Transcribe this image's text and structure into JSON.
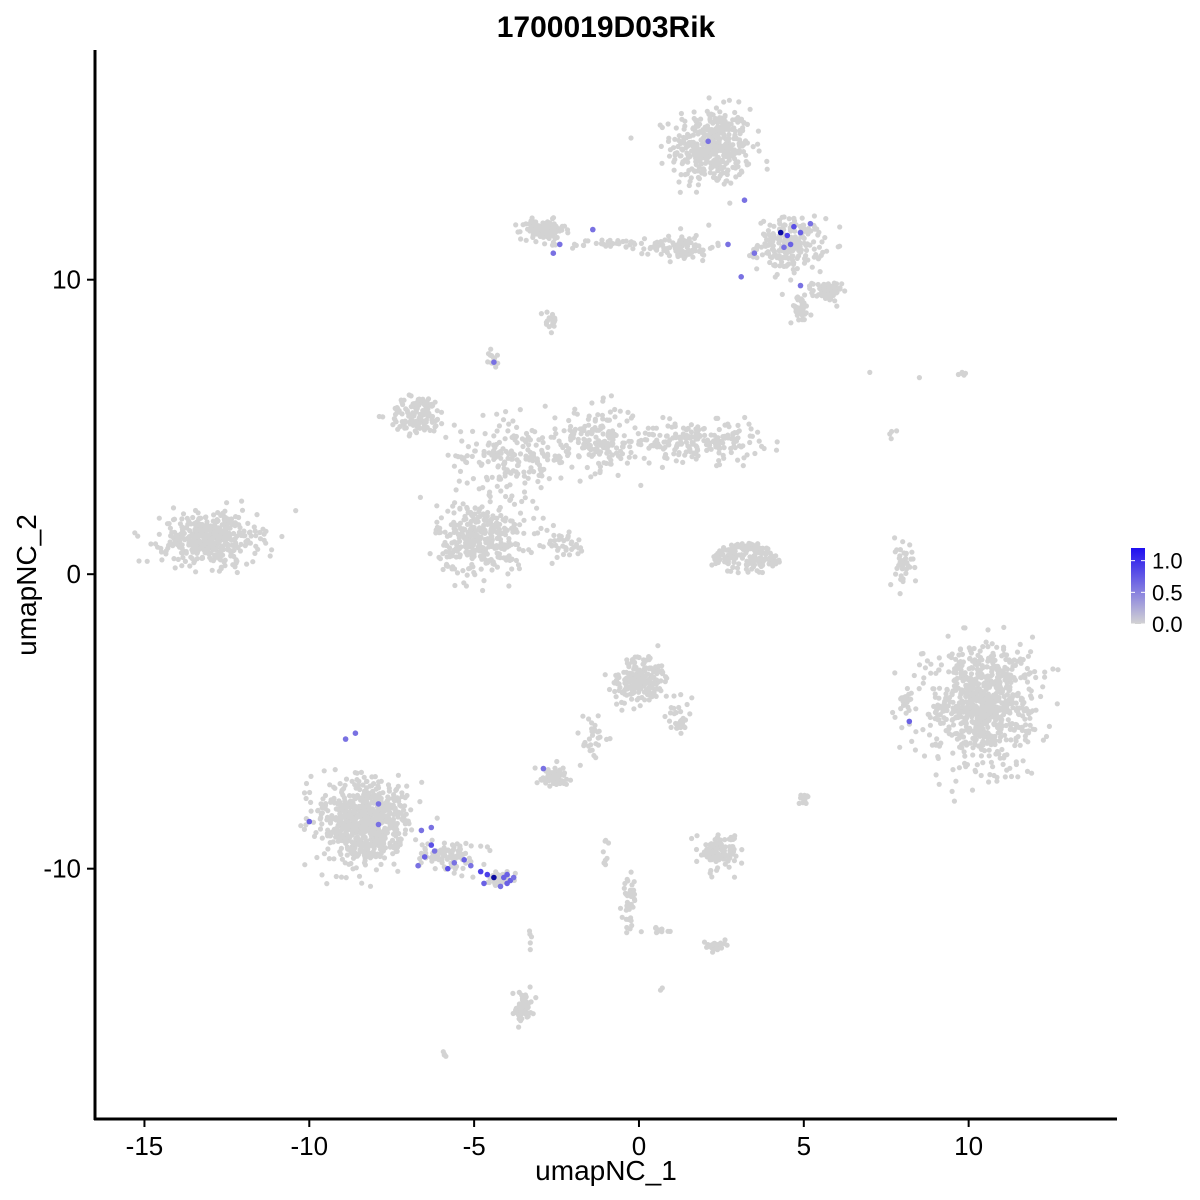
{
  "chart_data": {
    "type": "scatter",
    "title": "1700019D03Rik",
    "xlabel": "umapNC_1",
    "ylabel": "umapNC_2",
    "xlim": [
      -16.5,
      14.5
    ],
    "ylim": [
      -18.5,
      17.8
    ],
    "x_ticks": [
      -15,
      -10,
      -5,
      0,
      5,
      10
    ],
    "x_tick_labels": [
      "-15",
      "-10",
      "-5",
      "0",
      "5",
      "10"
    ],
    "y_ticks": [
      -10,
      0,
      10
    ],
    "y_tick_labels": [
      "-10",
      "0",
      "10"
    ],
    "grid": false,
    "legend_position": "right",
    "color_scale": {
      "low_color": "#d3d3d3",
      "high_color": "#1f0ff0",
      "min": 0.0,
      "max": 1.2,
      "ticks": [
        0.0,
        0.5,
        1.0
      ],
      "tick_labels": [
        "0.0",
        "0.5",
        "1.0"
      ]
    },
    "background_points_color": "#d3d3d3",
    "clusters": [
      {
        "cx": 2.2,
        "cy": 14.5,
        "sx": 1.1,
        "sy": 1.2,
        "n": 420,
        "shape": "ellipse"
      },
      {
        "cx": 4.6,
        "cy": 11.2,
        "sx": 0.9,
        "sy": 0.8,
        "n": 220,
        "shape": "ellipse"
      },
      {
        "cx": 5.7,
        "cy": 9.6,
        "sx": 0.4,
        "sy": 0.3,
        "n": 70,
        "shape": "ellipse"
      },
      {
        "cx": 4.9,
        "cy": 9.0,
        "sx": 0.3,
        "sy": 0.4,
        "n": 40,
        "shape": "ellipse"
      },
      {
        "cx": -2.9,
        "cy": 11.7,
        "sx": 0.6,
        "sy": 0.3,
        "n": 110,
        "shape": "ellipse"
      },
      {
        "cx": 1.3,
        "cy": 11.1,
        "sx": 0.9,
        "sy": 0.4,
        "n": 90,
        "shape": "ellipse"
      },
      {
        "cx": -0.8,
        "cy": 11.2,
        "sx": 1.2,
        "sy": 0.15,
        "n": 40,
        "shape": "ellipse"
      },
      {
        "cx": -2.7,
        "cy": 8.6,
        "sx": 0.2,
        "sy": 0.4,
        "n": 18,
        "shape": "ellipse"
      },
      {
        "cx": -4.4,
        "cy": 7.3,
        "sx": 0.15,
        "sy": 0.3,
        "n": 14,
        "shape": "ellipse"
      },
      {
        "cx": -6.7,
        "cy": 5.4,
        "sx": 0.8,
        "sy": 0.6,
        "n": 130,
        "shape": "ellipse"
      },
      {
        "cx": -3.8,
        "cy": 4.0,
        "sx": 1.6,
        "sy": 1.2,
        "n": 200,
        "shape": "ellipse"
      },
      {
        "cx": -1.2,
        "cy": 4.6,
        "sx": 1.1,
        "sy": 1.0,
        "n": 180,
        "shape": "ellipse"
      },
      {
        "cx": 1.8,
        "cy": 4.5,
        "sx": 1.7,
        "sy": 0.6,
        "n": 200,
        "shape": "ellipse"
      },
      {
        "cx": -4.8,
        "cy": 1.2,
        "sx": 1.2,
        "sy": 1.1,
        "n": 360,
        "shape": "ellipse"
      },
      {
        "cx": -2.4,
        "cy": 1.0,
        "sx": 0.8,
        "sy": 0.5,
        "n": 40,
        "shape": "ellipse"
      },
      {
        "cx": -13.0,
        "cy": 1.2,
        "sx": 1.3,
        "sy": 0.8,
        "n": 430,
        "shape": "ellipse"
      },
      {
        "cx": 3.2,
        "cy": 0.2,
        "sx": 1.1,
        "sy": 0.9,
        "n": 180,
        "shape": "ring"
      },
      {
        "cx": 8.0,
        "cy": 0.3,
        "sx": 0.25,
        "sy": 0.8,
        "n": 40,
        "shape": "ellipse"
      },
      {
        "cx": 10.4,
        "cy": -4.4,
        "sx": 1.4,
        "sy": 1.8,
        "n": 800,
        "shape": "ellipse"
      },
      {
        "cx": 8.1,
        "cy": -4.3,
        "sx": 0.2,
        "sy": 0.4,
        "n": 20,
        "shape": "ellipse"
      },
      {
        "cx": 0.0,
        "cy": -3.6,
        "sx": 0.7,
        "sy": 0.7,
        "n": 200,
        "shape": "ellipse"
      },
      {
        "cx": -1.4,
        "cy": -5.6,
        "sx": 0.4,
        "sy": 0.7,
        "n": 30,
        "shape": "ellipse"
      },
      {
        "cx": 1.2,
        "cy": -4.9,
        "sx": 0.3,
        "sy": 0.5,
        "n": 30,
        "shape": "ellipse"
      },
      {
        "cx": -2.6,
        "cy": -6.9,
        "sx": 0.35,
        "sy": 0.3,
        "n": 70,
        "shape": "ellipse"
      },
      {
        "cx": -8.3,
        "cy": -8.4,
        "sx": 1.2,
        "sy": 1.3,
        "n": 700,
        "shape": "ellipse"
      },
      {
        "cx": -5.8,
        "cy": -9.6,
        "sx": 0.9,
        "sy": 0.4,
        "n": 90,
        "shape": "ellipse"
      },
      {
        "cx": -4.2,
        "cy": -10.3,
        "sx": 0.35,
        "sy": 0.2,
        "n": 40,
        "shape": "ellipse"
      },
      {
        "cx": 2.4,
        "cy": -9.4,
        "sx": 0.6,
        "sy": 0.5,
        "n": 110,
        "shape": "ellipse"
      },
      {
        "cx": 5.0,
        "cy": -7.6,
        "sx": 0.15,
        "sy": 0.2,
        "n": 14,
        "shape": "ellipse"
      },
      {
        "cx": -0.3,
        "cy": -11.1,
        "sx": 0.2,
        "sy": 0.9,
        "n": 45,
        "shape": "ellipse"
      },
      {
        "cx": 2.3,
        "cy": -12.6,
        "sx": 0.3,
        "sy": 0.15,
        "n": 25,
        "shape": "ellipse"
      },
      {
        "cx": -3.5,
        "cy": -14.7,
        "sx": 0.3,
        "sy": 0.5,
        "n": 55,
        "shape": "ellipse"
      },
      {
        "cx": -5.9,
        "cy": -16.3,
        "sx": 0.1,
        "sy": 0.1,
        "n": 4,
        "shape": "ellipse"
      },
      {
        "cx": 9.8,
        "cy": 6.8,
        "sx": 0.2,
        "sy": 0.15,
        "n": 5,
        "shape": "ellipse"
      },
      {
        "cx": 7.7,
        "cy": 4.8,
        "sx": 0.1,
        "sy": 0.15,
        "n": 4,
        "shape": "ellipse"
      },
      {
        "cx": 7.0,
        "cy": 6.9,
        "sx": 0.05,
        "sy": 0.05,
        "n": 1,
        "shape": "ellipse"
      },
      {
        "cx": 8.5,
        "cy": 6.7,
        "sx": 0.05,
        "sy": 0.05,
        "n": 1,
        "shape": "ellipse"
      },
      {
        "cx": 0.7,
        "cy": -12.1,
        "sx": 0.6,
        "sy": 0.15,
        "n": 12,
        "shape": "ellipse"
      },
      {
        "cx": 0.7,
        "cy": -14.1,
        "sx": 0.05,
        "sy": 0.05,
        "n": 2,
        "shape": "ellipse"
      },
      {
        "cx": -1.0,
        "cy": -9.2,
        "sx": 0.1,
        "sy": 0.5,
        "n": 8,
        "shape": "ellipse"
      },
      {
        "cx": -3.3,
        "cy": -12.5,
        "sx": 0.05,
        "sy": 0.3,
        "n": 5,
        "shape": "ellipse"
      }
    ],
    "expressed_points": [
      {
        "x": 2.1,
        "y": 14.7,
        "v": 0.6
      },
      {
        "x": 3.2,
        "y": 12.7,
        "v": 0.6
      },
      {
        "x": 2.7,
        "y": 11.2,
        "v": 0.6
      },
      {
        "x": 3.5,
        "y": 10.9,
        "v": 0.6
      },
      {
        "x": 4.3,
        "y": 11.6,
        "v": 1.2
      },
      {
        "x": 4.5,
        "y": 11.5,
        "v": 0.9
      },
      {
        "x": 4.7,
        "y": 11.8,
        "v": 0.8
      },
      {
        "x": 4.9,
        "y": 11.6,
        "v": 0.7
      },
      {
        "x": 4.6,
        "y": 11.2,
        "v": 0.7
      },
      {
        "x": 4.4,
        "y": 11.1,
        "v": 0.6
      },
      {
        "x": 5.2,
        "y": 11.9,
        "v": 0.6
      },
      {
        "x": 3.1,
        "y": 10.1,
        "v": 0.6
      },
      {
        "x": 4.9,
        "y": 9.8,
        "v": 0.6
      },
      {
        "x": -1.4,
        "y": 11.7,
        "v": 0.6
      },
      {
        "x": -2.4,
        "y": 11.2,
        "v": 0.6
      },
      {
        "x": -2.6,
        "y": 10.9,
        "v": 0.6
      },
      {
        "x": -4.4,
        "y": 7.2,
        "v": 0.6
      },
      {
        "x": 8.2,
        "y": -5.0,
        "v": 0.7
      },
      {
        "x": -2.9,
        "y": -6.6,
        "v": 0.6
      },
      {
        "x": -8.9,
        "y": -5.6,
        "v": 0.6
      },
      {
        "x": -8.6,
        "y": -5.4,
        "v": 0.6
      },
      {
        "x": -7.9,
        "y": -7.8,
        "v": 0.6
      },
      {
        "x": -10.0,
        "y": -8.4,
        "v": 0.7
      },
      {
        "x": -7.9,
        "y": -8.5,
        "v": 0.6
      },
      {
        "x": -6.6,
        "y": -8.7,
        "v": 0.6
      },
      {
        "x": -6.3,
        "y": -8.6,
        "v": 0.6
      },
      {
        "x": -6.3,
        "y": -9.2,
        "v": 0.8
      },
      {
        "x": -6.5,
        "y": -9.6,
        "v": 0.7
      },
      {
        "x": -6.2,
        "y": -9.4,
        "v": 0.6
      },
      {
        "x": -5.8,
        "y": -10.0,
        "v": 0.8
      },
      {
        "x": -5.6,
        "y": -9.8,
        "v": 0.6
      },
      {
        "x": -5.3,
        "y": -9.7,
        "v": 0.7
      },
      {
        "x": -5.1,
        "y": -9.9,
        "v": 0.6
      },
      {
        "x": -4.8,
        "y": -10.1,
        "v": 0.9
      },
      {
        "x": -4.6,
        "y": -10.2,
        "v": 0.9
      },
      {
        "x": -4.4,
        "y": -10.3,
        "v": 1.2
      },
      {
        "x": -4.7,
        "y": -10.5,
        "v": 0.7
      },
      {
        "x": -4.1,
        "y": -10.3,
        "v": 0.7
      },
      {
        "x": -4.0,
        "y": -10.5,
        "v": 0.7
      },
      {
        "x": -3.9,
        "y": -10.4,
        "v": 0.7
      },
      {
        "x": -3.8,
        "y": -10.3,
        "v": 0.6
      },
      {
        "x": -4.0,
        "y": -10.2,
        "v": 0.7
      },
      {
        "x": -4.2,
        "y": -10.6,
        "v": 0.6
      },
      {
        "x": -6.7,
        "y": -9.9,
        "v": 0.6
      }
    ]
  }
}
